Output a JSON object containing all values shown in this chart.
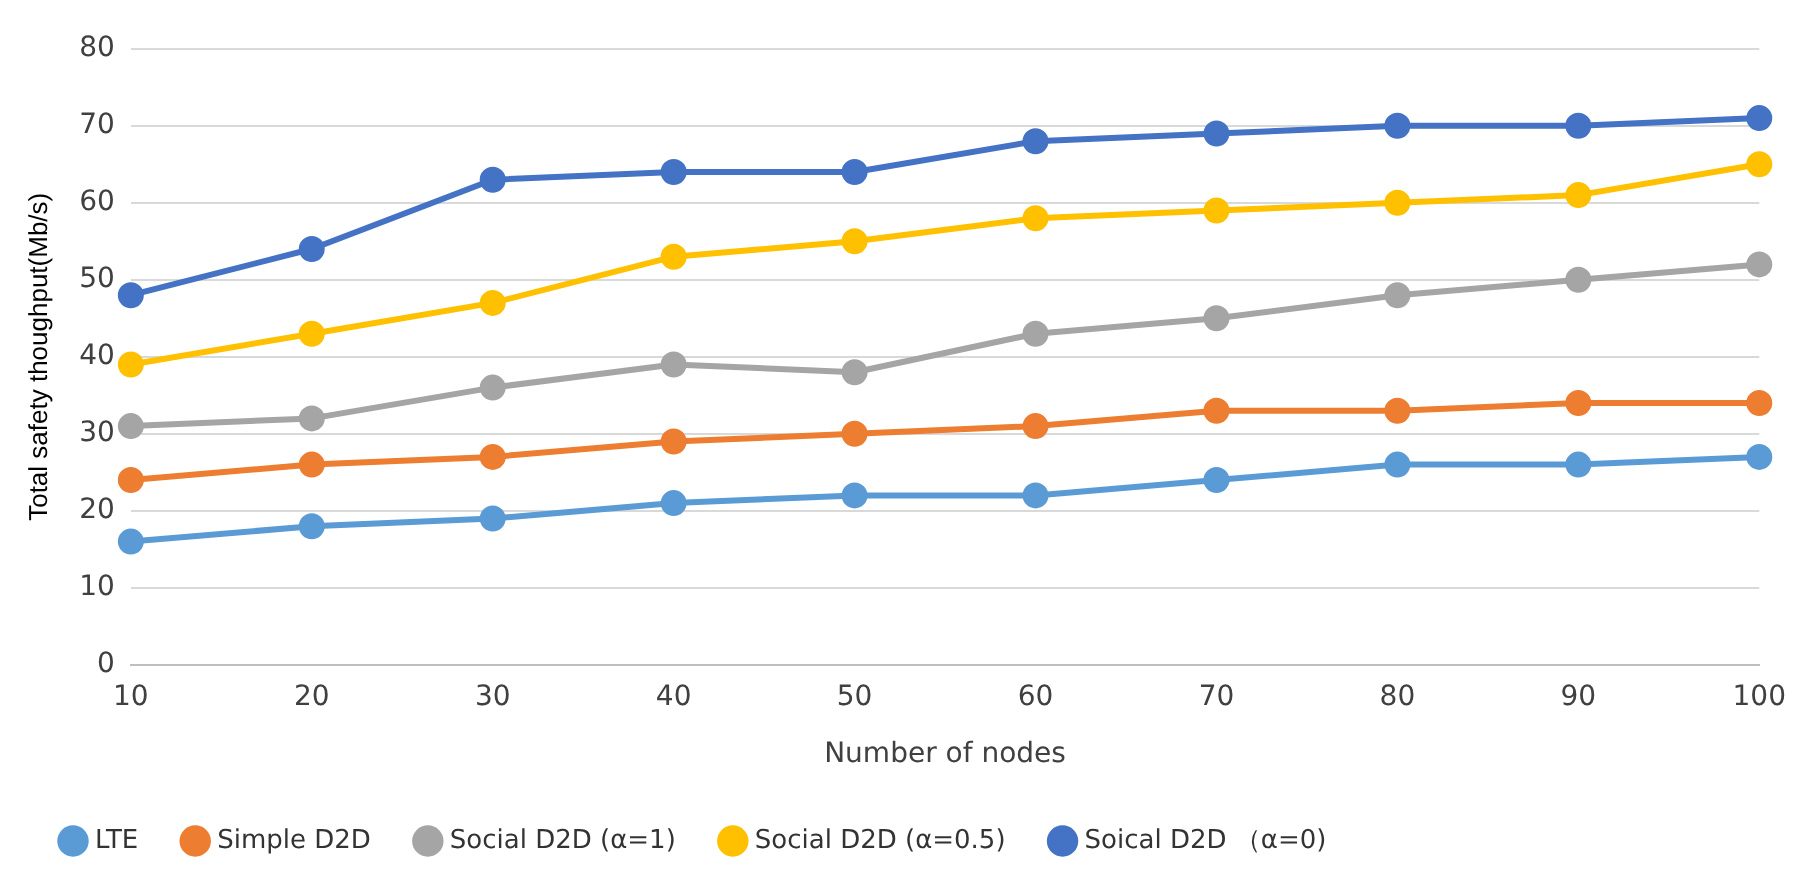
{
  "chart_data": {
    "type": "line",
    "xlabel": "Number of nodes",
    "ylabel": "Total safety thoughput(Mb/s)",
    "categories": [
      "10",
      "20",
      "30",
      "40",
      "50",
      "60",
      "70",
      "80",
      "90",
      "100"
    ],
    "ylim": [
      0,
      80
    ],
    "yticks": [
      0,
      10,
      20,
      30,
      40,
      50,
      60,
      70,
      80
    ],
    "grid": "y",
    "legend": "bottom",
    "marker": "circle",
    "line_style": "solid",
    "series": [
      {
        "name": "LTE",
        "color": "#5b9bd5",
        "values": [
          16,
          18,
          19,
          21,
          22,
          22,
          24,
          26,
          26,
          27
        ]
      },
      {
        "name": "Simple D2D",
        "color": "#ed7d31",
        "values": [
          24,
          26,
          27,
          29,
          30,
          31,
          33,
          33,
          34,
          34
        ]
      },
      {
        "name": "Social D2D (α=1)",
        "color": "#a5a5a5",
        "values": [
          31,
          32,
          36,
          39,
          38,
          43,
          45,
          48,
          50,
          52
        ]
      },
      {
        "name": "Social D2D (α=0.5)",
        "color": "#ffc000",
        "values": [
          39,
          43,
          47,
          53,
          55,
          58,
          59,
          60,
          61,
          65
        ]
      },
      {
        "name": "Soical D2D （α=0)",
        "color": "#4472c4",
        "values": [
          48,
          54,
          63,
          64,
          64,
          68,
          69,
          70,
          70,
          71
        ]
      }
    ]
  }
}
